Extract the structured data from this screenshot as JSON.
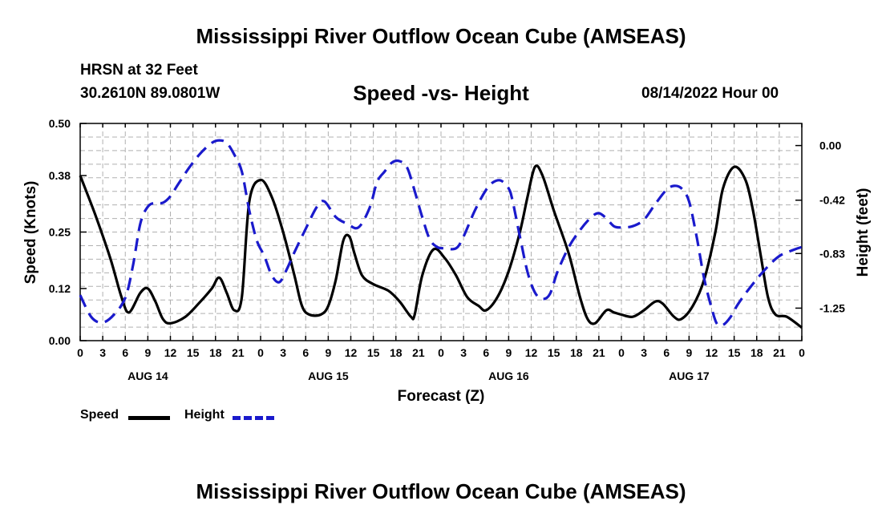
{
  "header": {
    "title": "Mississippi River Outflow Ocean Cube (AMSEAS)",
    "station": "HRSN at 32 Feet",
    "coordinates": "30.2610N  89.0801W",
    "subtitle": "Speed -vs- Height",
    "datetime": "08/14/2022 Hour 00"
  },
  "footer": {
    "title": "Mississippi River Outflow Ocean Cube (AMSEAS)"
  },
  "legend": {
    "speed_label": "Speed",
    "height_label": "Height"
  },
  "colors": {
    "speed": "#000000",
    "height": "#1a1acc",
    "grid": "#b0b0b0"
  },
  "chart_data": {
    "type": "line",
    "title": "Speed -vs- Height",
    "xlabel": "Forecast (Z)",
    "ylabel": "Speed (Knots)",
    "y2label": "Height (feet)",
    "xlim": [
      0,
      96
    ],
    "ylim": [
      0,
      0.5
    ],
    "y2lim": [
      -1.5,
      0.17
    ],
    "grid": true,
    "x_tick_labels": [
      "0",
      "3",
      "6",
      "9",
      "12",
      "15",
      "18",
      "21",
      "0",
      "3",
      "6",
      "9",
      "12",
      "15",
      "18",
      "21",
      "0",
      "3",
      "6",
      "9",
      "12",
      "15",
      "18",
      "21",
      "0",
      "3",
      "6",
      "9",
      "12",
      "15",
      "18",
      "21",
      "0"
    ],
    "date_labels": [
      {
        "x": 9,
        "label": "AUG 14"
      },
      {
        "x": 33,
        "label": "AUG 15"
      },
      {
        "x": 57,
        "label": "AUG 16"
      },
      {
        "x": 81,
        "label": "AUG 17"
      }
    ],
    "y_ticks": [
      0,
      0.12,
      0.25,
      0.38,
      0.5
    ],
    "y_tick_labels": [
      "0.00",
      "0.12",
      "0.25",
      "0.38",
      "0.50"
    ],
    "y2_ticks": [
      0,
      -0.42,
      -0.83,
      -1.25
    ],
    "y2_tick_labels": [
      "0.00",
      "-0.42",
      "-0.83",
      "-1.25"
    ],
    "series": [
      {
        "name": "Speed",
        "axis": "left",
        "style": "solid",
        "points": [
          [
            0,
            0.38
          ],
          [
            2,
            0.29
          ],
          [
            4,
            0.19
          ],
          [
            5.5,
            0.1
          ],
          [
            6.5,
            0.065
          ],
          [
            8,
            0.11
          ],
          [
            9,
            0.12
          ],
          [
            10,
            0.09
          ],
          [
            11,
            0.05
          ],
          [
            12,
            0.04
          ],
          [
            14,
            0.055
          ],
          [
            16,
            0.09
          ],
          [
            17.5,
            0.12
          ],
          [
            18.5,
            0.145
          ],
          [
            19.5,
            0.11
          ],
          [
            20.5,
            0.07
          ],
          [
            21.5,
            0.1
          ],
          [
            22.5,
            0.32
          ],
          [
            24,
            0.37
          ],
          [
            25.5,
            0.33
          ],
          [
            27,
            0.25
          ],
          [
            28.5,
            0.15
          ],
          [
            29.5,
            0.08
          ],
          [
            30.5,
            0.06
          ],
          [
            32,
            0.06
          ],
          [
            33,
            0.08
          ],
          [
            34,
            0.14
          ],
          [
            35,
            0.23
          ],
          [
            35.8,
            0.24
          ],
          [
            36.5,
            0.2
          ],
          [
            37.5,
            0.15
          ],
          [
            39,
            0.13
          ],
          [
            41,
            0.115
          ],
          [
            42.5,
            0.09
          ],
          [
            44,
            0.055
          ],
          [
            44.5,
            0.06
          ],
          [
            45.5,
            0.15
          ],
          [
            47,
            0.21
          ],
          [
            48.5,
            0.19
          ],
          [
            50,
            0.15
          ],
          [
            51.5,
            0.1
          ],
          [
            53,
            0.08
          ],
          [
            54,
            0.07
          ],
          [
            55.5,
            0.1
          ],
          [
            57,
            0.16
          ],
          [
            58.5,
            0.25
          ],
          [
            59.5,
            0.33
          ],
          [
            60.5,
            0.4
          ],
          [
            61.5,
            0.38
          ],
          [
            63,
            0.3
          ],
          [
            65,
            0.2
          ],
          [
            66.5,
            0.1
          ],
          [
            67.5,
            0.05
          ],
          [
            68.5,
            0.04
          ],
          [
            70,
            0.07
          ],
          [
            71,
            0.065
          ],
          [
            72,
            0.06
          ],
          [
            73.5,
            0.055
          ],
          [
            75,
            0.07
          ],
          [
            76.5,
            0.09
          ],
          [
            77.5,
            0.085
          ],
          [
            79,
            0.055
          ],
          [
            80,
            0.05
          ],
          [
            81.5,
            0.08
          ],
          [
            83,
            0.14
          ],
          [
            84.5,
            0.25
          ],
          [
            85.5,
            0.35
          ],
          [
            87,
            0.4
          ],
          [
            88.5,
            0.37
          ],
          [
            89.5,
            0.3
          ],
          [
            90.5,
            0.2
          ],
          [
            91.5,
            0.1
          ],
          [
            92.5,
            0.06
          ],
          [
            94,
            0.055
          ],
          [
            96,
            0.03
          ]
        ]
      },
      {
        "name": "Height",
        "axis": "right",
        "style": "dashed",
        "points": [
          [
            0,
            -1.15
          ],
          [
            1.5,
            -1.32
          ],
          [
            3,
            -1.36
          ],
          [
            4.5,
            -1.3
          ],
          [
            6,
            -1.17
          ],
          [
            7,
            -0.93
          ],
          [
            8,
            -0.6
          ],
          [
            9,
            -0.47
          ],
          [
            10,
            -0.44
          ],
          [
            11,
            -0.44
          ],
          [
            12,
            -0.39
          ],
          [
            13,
            -0.3
          ],
          [
            14.5,
            -0.17
          ],
          [
            16,
            -0.06
          ],
          [
            17.5,
            0.02
          ],
          [
            18.5,
            0.04
          ],
          [
            19.5,
            0.02
          ],
          [
            20.5,
            -0.07
          ],
          [
            21.5,
            -0.2
          ],
          [
            22.5,
            -0.5
          ],
          [
            23.5,
            -0.73
          ],
          [
            24.5,
            -0.85
          ],
          [
            25.5,
            -1.0
          ],
          [
            26.5,
            -1.05
          ],
          [
            27.5,
            -0.95
          ],
          [
            28.5,
            -0.82
          ],
          [
            30,
            -0.64
          ],
          [
            31.5,
            -0.47
          ],
          [
            32.5,
            -0.43
          ],
          [
            34,
            -0.55
          ],
          [
            35.5,
            -0.6
          ],
          [
            37,
            -0.63
          ],
          [
            38.5,
            -0.48
          ],
          [
            39.5,
            -0.28
          ],
          [
            40.5,
            -0.2
          ],
          [
            41.5,
            -0.13
          ],
          [
            42.5,
            -0.12
          ],
          [
            43.5,
            -0.17
          ],
          [
            44.5,
            -0.35
          ],
          [
            45.5,
            -0.55
          ],
          [
            46.5,
            -0.72
          ],
          [
            47.5,
            -0.78
          ],
          [
            48.5,
            -0.79
          ],
          [
            50,
            -0.79
          ],
          [
            51,
            -0.7
          ],
          [
            52.5,
            -0.5
          ],
          [
            54,
            -0.34
          ],
          [
            55,
            -0.28
          ],
          [
            56,
            -0.27
          ],
          [
            57,
            -0.33
          ],
          [
            57.5,
            -0.42
          ],
          [
            58.5,
            -0.7
          ],
          [
            59.5,
            -0.97
          ],
          [
            60.5,
            -1.13
          ],
          [
            61.5,
            -1.18
          ],
          [
            62.5,
            -1.14
          ],
          [
            63.5,
            -0.97
          ],
          [
            65,
            -0.78
          ],
          [
            66.5,
            -0.65
          ],
          [
            68,
            -0.55
          ],
          [
            69,
            -0.52
          ],
          [
            70,
            -0.56
          ],
          [
            71,
            -0.62
          ],
          [
            72,
            -0.63
          ],
          [
            73.5,
            -0.62
          ],
          [
            75,
            -0.57
          ],
          [
            76.5,
            -0.45
          ],
          [
            78,
            -0.34
          ],
          [
            79,
            -0.31
          ],
          [
            80,
            -0.33
          ],
          [
            81,
            -0.43
          ],
          [
            82,
            -0.7
          ],
          [
            83,
            -1.02
          ],
          [
            84,
            -1.25
          ],
          [
            84.7,
            -1.37
          ],
          [
            85.5,
            -1.38
          ],
          [
            86.5,
            -1.32
          ],
          [
            87.5,
            -1.22
          ],
          [
            89,
            -1.1
          ],
          [
            91,
            -0.96
          ],
          [
            93,
            -0.85
          ],
          [
            95,
            -0.8
          ],
          [
            96,
            -0.78
          ]
        ]
      }
    ]
  }
}
